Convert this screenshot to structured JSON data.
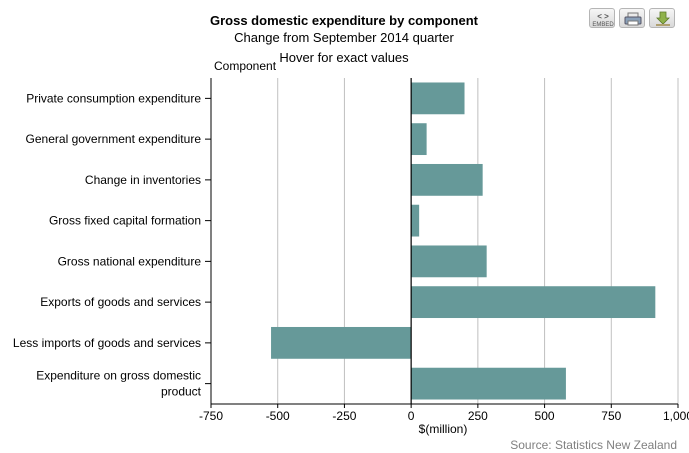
{
  "chart_data": {
    "type": "bar",
    "orientation": "horizontal",
    "title": "Gross domestic expenditure by component",
    "subtitle": "Change from September 2014 quarter",
    "hint": "Hover for exact values",
    "category_axis_title": "Component",
    "xlabel": "$(million)",
    "categories": [
      [
        "Private consumption expenditure"
      ],
      [
        "General government expenditure"
      ],
      [
        "Change in inventories"
      ],
      [
        "Gross fixed capital formation"
      ],
      [
        "Gross national expenditure"
      ],
      [
        "Exports of goods and services"
      ],
      [
        "Less imports of goods and services"
      ],
      [
        "Expenditure on gross domestic",
        "product"
      ]
    ],
    "values": [
      200,
      58,
      268,
      30,
      283,
      915,
      -525,
      580
    ],
    "xlim": [
      -750,
      1000
    ],
    "xticks": [
      -750,
      -500,
      -250,
      0,
      250,
      500,
      750,
      1000
    ],
    "xtick_labels": [
      "-750",
      "-500",
      "-250",
      "0",
      "250",
      "500",
      "750",
      "1,000"
    ],
    "grid": true,
    "bar_color": "#669999",
    "source": "Source: Statistics New Zealand"
  },
  "toolbar": {
    "embed_label": "EMBED",
    "embed_glyph": "< >"
  }
}
